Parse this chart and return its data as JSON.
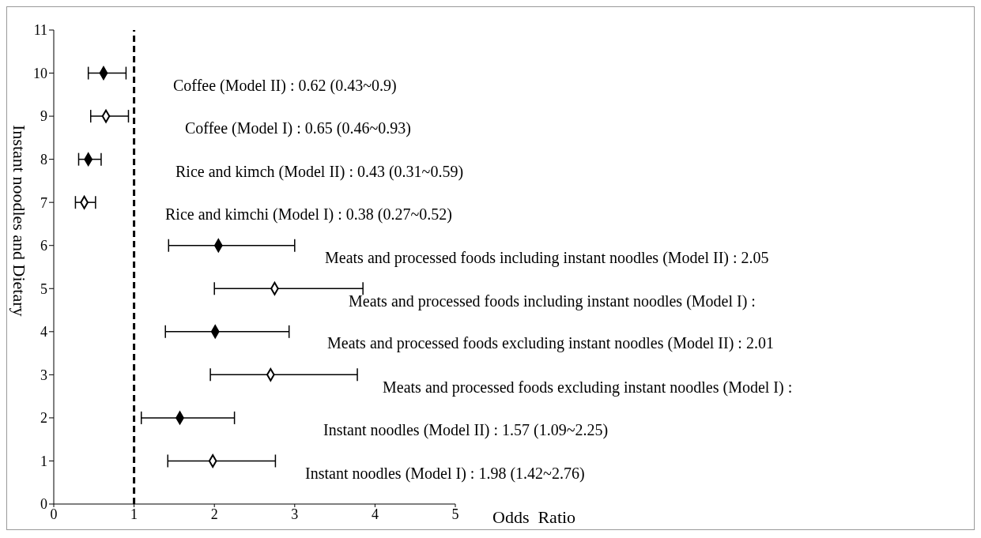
{
  "chart_data": {
    "type": "scatter",
    "xlabel": "Odds  Ratio",
    "ylabel": "Instant noodles and Dietary",
    "xlim": [
      0,
      5
    ],
    "xticks": [
      0,
      1,
      2,
      3,
      4,
      5
    ],
    "ylim": [
      0,
      11
    ],
    "yticks": [
      0,
      1,
      2,
      3,
      4,
      5,
      6,
      7,
      8,
      9,
      10,
      11
    ],
    "grid": false,
    "legend": false,
    "marker": "diamond",
    "series": [
      {
        "color": "#000000",
        "x": [
          0.62,
          0.43,
          2.05,
          2.01,
          1.57
        ],
        "values": [
          10,
          8,
          6,
          4,
          2
        ],
        "xerrors": [
          [
            0.43,
            0.9
          ],
          [
            0.31,
            0.59
          ],
          [
            1.43,
            3.0
          ],
          [
            1.39,
            2.93
          ],
          [
            1.09,
            2.25
          ]
        ]
      },
      {
        "color": "#ffffff",
        "x": [
          0.65,
          0.38,
          2.75,
          2.7,
          1.98
        ],
        "values": [
          9,
          7,
          5,
          3,
          1
        ],
        "xerrors": [
          [
            0.46,
            0.93
          ],
          [
            0.27,
            0.52
          ],
          [
            2.0,
            3.85
          ],
          [
            1.95,
            3.78
          ],
          [
            1.42,
            2.76
          ]
        ]
      }
    ],
    "ref_lines": [
      {
        "axis": "x",
        "value": 1,
        "color": "#000000",
        "line_style": "dashed"
      }
    ],
    "annotations": [
      "Coffee (Model II) : 0.62 (0.43~0.9)",
      "Coffee (Model I) : 0.65 (0.46~0.93)",
      "Rice and kimch (Model II) : 0.43 (0.31~0.59)",
      "Rice and kimchi (Model I) : 0.38 (0.27~0.52)",
      "Meats and processed foods including instant noodles (Model II) : 2.05",
      "Meats and processed foods including instant noodles (Model I) :",
      "Meats and processed foods excluding instant noodles (Model II) : 2.01",
      "Meats and processed foods excluding instant noodles (Model I) :",
      "Instant noodles (Model II) : 1.57 (1.09~2.25)",
      "Instant noodles (Model I) : 1.98 (1.42~2.76)"
    ]
  }
}
